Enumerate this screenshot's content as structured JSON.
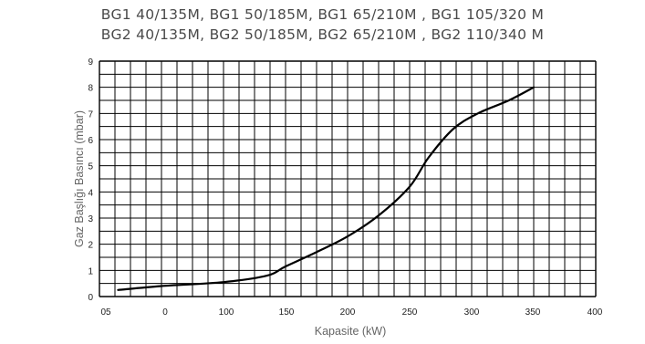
{
  "titles": [
    "BG1 40/135M, BG1 50/185M, BG1 65/210M , BG1 105/320 M",
    "BG2 40/135M, BG2 50/185M, BG2 65/210M , BG2 110/340 M"
  ],
  "chart_data": {
    "type": "line",
    "xlabel": "Kapasite (kW)",
    "ylabel": "Gaz Başlığı Basıncı (mbar)",
    "x_tick_labels": [
      "05",
      "0",
      "100",
      "150",
      "200",
      "250",
      "300",
      "350",
      "400"
    ],
    "y_tick_labels": [
      "0",
      "1",
      "2",
      "3",
      "4",
      "5",
      "6",
      "7",
      "8",
      "9"
    ],
    "xlim": [
      0,
      400
    ],
    "ylim": [
      0,
      9
    ],
    "grid": true,
    "series": [
      {
        "x": [
          15,
          50,
          100,
          135,
          150,
          175,
          200,
          225,
          250,
          265,
          285,
          305,
          330,
          350
        ],
        "y": [
          0.25,
          0.4,
          0.55,
          0.8,
          1.15,
          1.7,
          2.3,
          3.1,
          4.2,
          5.3,
          6.4,
          7.0,
          7.5,
          8.0
        ]
      }
    ]
  }
}
